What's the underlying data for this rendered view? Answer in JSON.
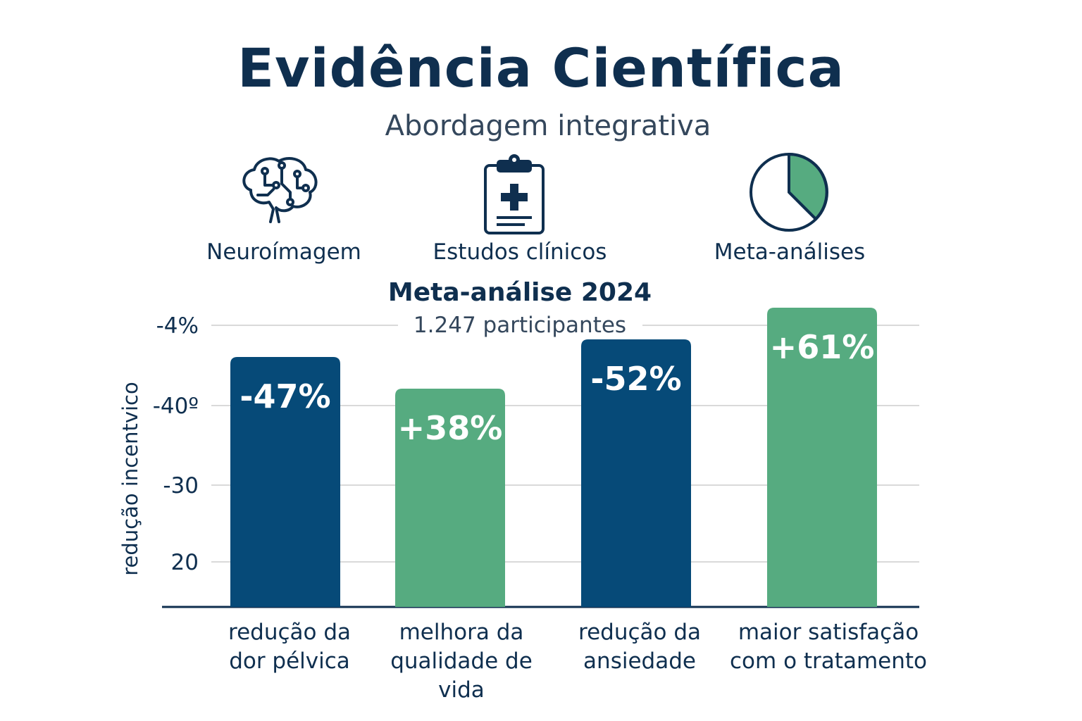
{
  "header": {
    "title": "Evidência Científica",
    "subtitle": "Abordagem integrativa"
  },
  "sources": [
    {
      "label": "Neuroímagem",
      "icon": "brain-icon"
    },
    {
      "label": "Estudos clínicos",
      "icon": "clipboard-medical-icon"
    },
    {
      "label": "Meta-análises",
      "icon": "pie-chart-icon"
    }
  ],
  "colors": {
    "navy": "#064a78",
    "green": "#56ab80",
    "text": "#0f2f4f",
    "grid": "#d9d9d9"
  },
  "chart_data": {
    "type": "bar",
    "title": "Meta-análise 2024",
    "subtitle": "1.247 participantes",
    "ylabel": "redução incentvico",
    "y_tick_labels": [
      "-4%",
      "-40º",
      "-30",
      "20"
    ],
    "grid": true,
    "categories": [
      [
        "redução da",
        "dor pélvica"
      ],
      [
        "melhora da",
        "qualidade de",
        "vida"
      ],
      [
        "redução da",
        "ansiedade"
      ],
      [
        "maior satisfação",
        "com o tratamento"
      ]
    ],
    "values": [
      -47,
      38,
      -52,
      61
    ],
    "value_labels": [
      "-47%",
      "+38%",
      "-52%",
      "+61%"
    ],
    "bar_colors": [
      "#064a78",
      "#56ab80",
      "#064a78",
      "#56ab80"
    ]
  }
}
